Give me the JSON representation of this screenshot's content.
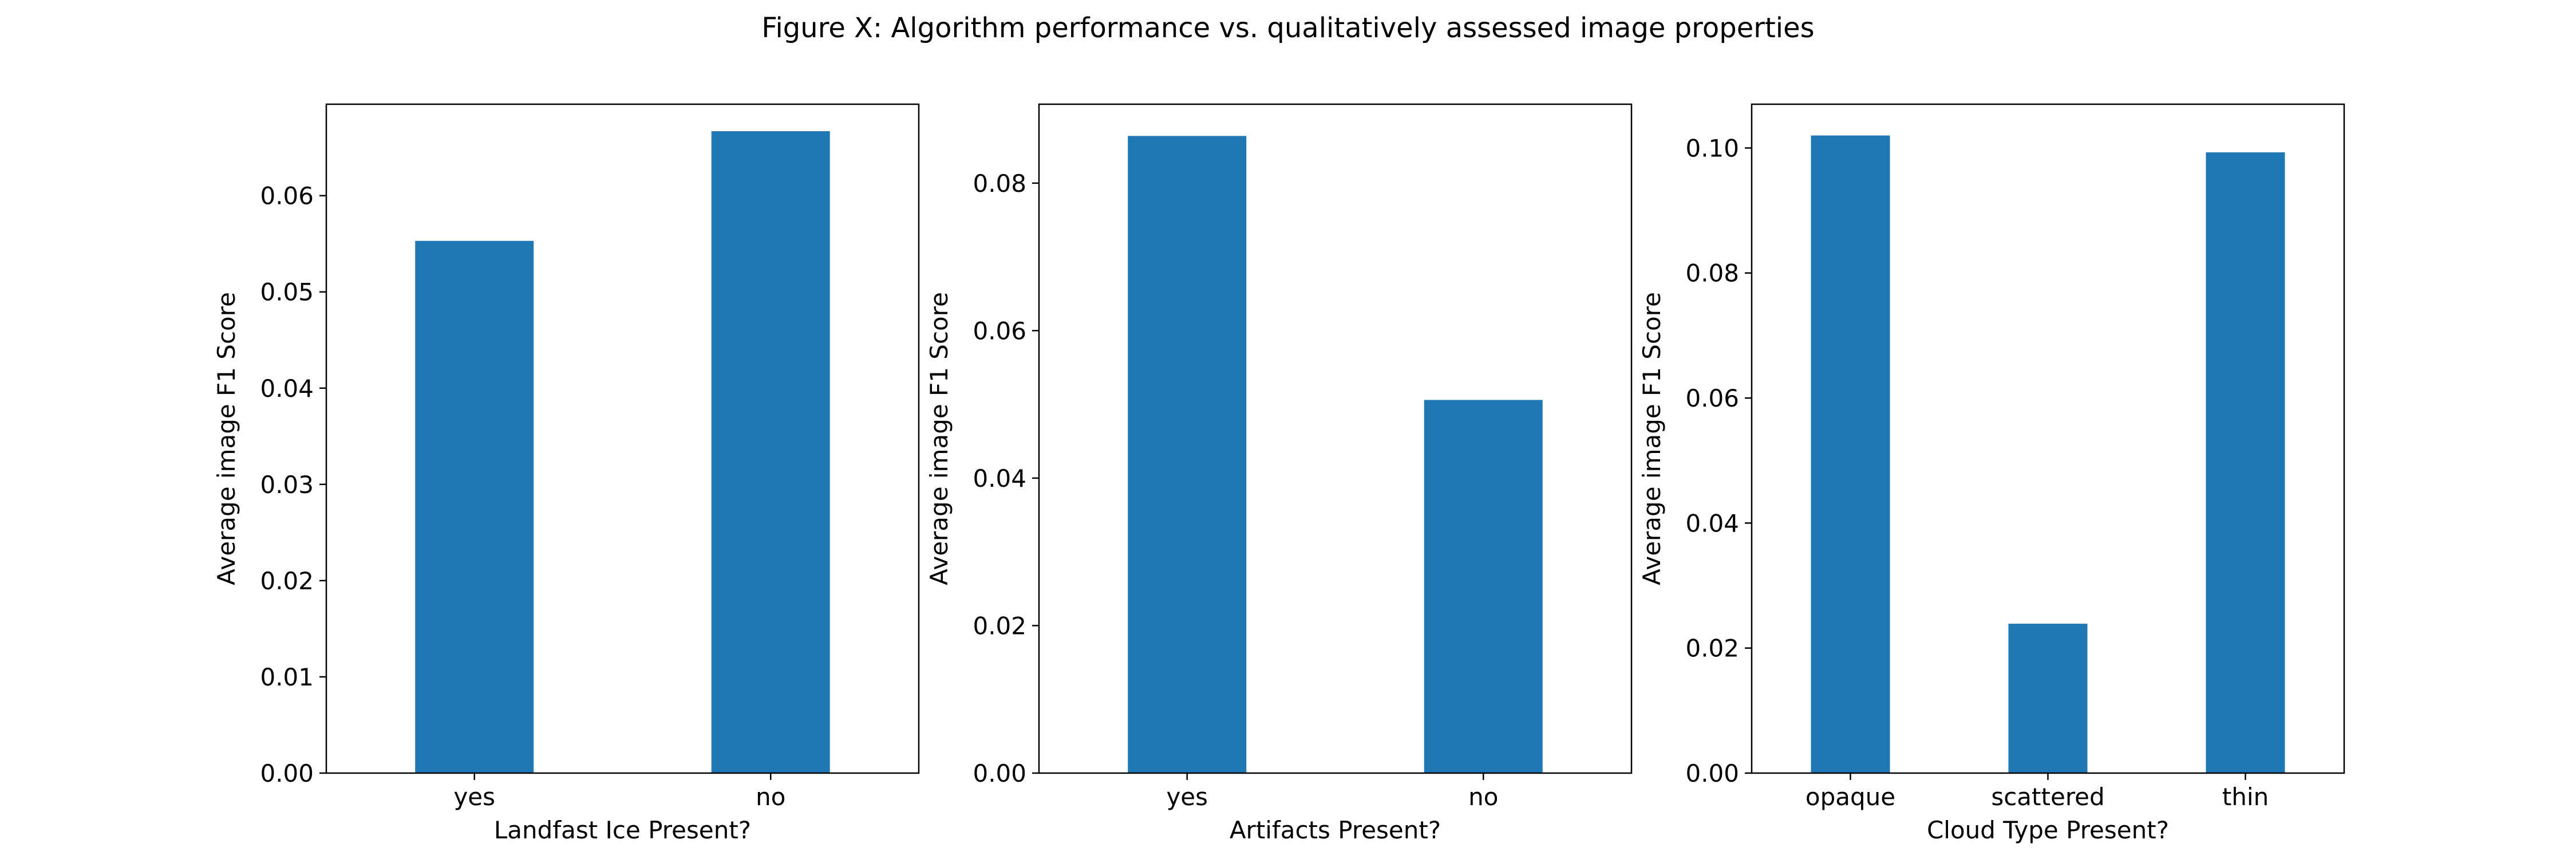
{
  "figure": {
    "title": "Figure X: Algorithm performance vs. qualitatively assessed image properties"
  },
  "colors": {
    "bar": "#1f77b4"
  },
  "chart_data": [
    {
      "type": "bar",
      "categories": [
        "yes",
        "no"
      ],
      "values": [
        0.0553,
        0.0667
      ],
      "xlabel": "Landfast Ice Present?",
      "ylabel": "Average image F1 Score",
      "ylim": [
        0,
        0.0695
      ],
      "yticks": [
        "0.00",
        "0.01",
        "0.02",
        "0.03",
        "0.04",
        "0.05",
        "0.06"
      ],
      "ytick_values": [
        0,
        0.01,
        0.02,
        0.03,
        0.04,
        0.05,
        0.06
      ],
      "grid": false,
      "legend": "none"
    },
    {
      "type": "bar",
      "categories": [
        "yes",
        "no"
      ],
      "values": [
        0.0864,
        0.0506
      ],
      "xlabel": "Artifacts Present?",
      "ylabel": "Average image F1 Score",
      "ylim": [
        0,
        0.0907
      ],
      "yticks": [
        "0.00",
        "0.02",
        "0.04",
        "0.06",
        "0.08"
      ],
      "ytick_values": [
        0,
        0.02,
        0.04,
        0.06,
        0.08
      ],
      "grid": false,
      "legend": "none"
    },
    {
      "type": "bar",
      "categories": [
        "opaque",
        "scattered",
        "thin"
      ],
      "values": [
        0.102,
        0.0239,
        0.0993
      ],
      "xlabel": "Cloud Type Present?",
      "ylabel": "Average image F1 Score",
      "ylim": [
        0,
        0.107
      ],
      "yticks": [
        "0.00",
        "0.02",
        "0.04",
        "0.06",
        "0.08",
        "0.10"
      ],
      "ytick_values": [
        0,
        0.02,
        0.04,
        0.06,
        0.08,
        0.1
      ],
      "grid": false,
      "legend": "none"
    }
  ]
}
